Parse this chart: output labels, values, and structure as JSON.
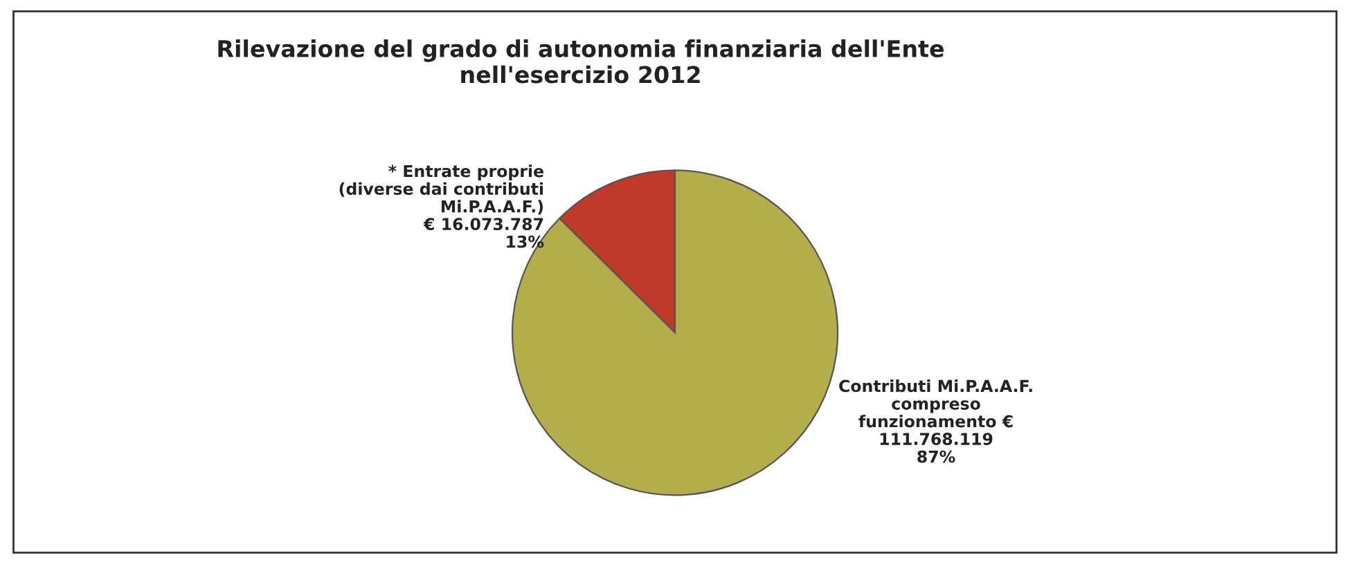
{
  "chart_data": {
    "type": "pie",
    "title": "Rilevazione del grado di autonomia finanziaria dell'Ente\nnell'esercizio 2012",
    "categories": [
      "* Entrate proprie\n(diverse dai contributi\nMi.P.A.A.F.)\n€ 16.073.787\n13%",
      "Contributi Mi.P.A.A.F.\ncompreso\nfunzionamento €\n111.768.119\n87%"
    ],
    "values": [
      16073787,
      111768119
    ],
    "colors": [
      "#c0392b",
      "#b3ad4a"
    ]
  }
}
